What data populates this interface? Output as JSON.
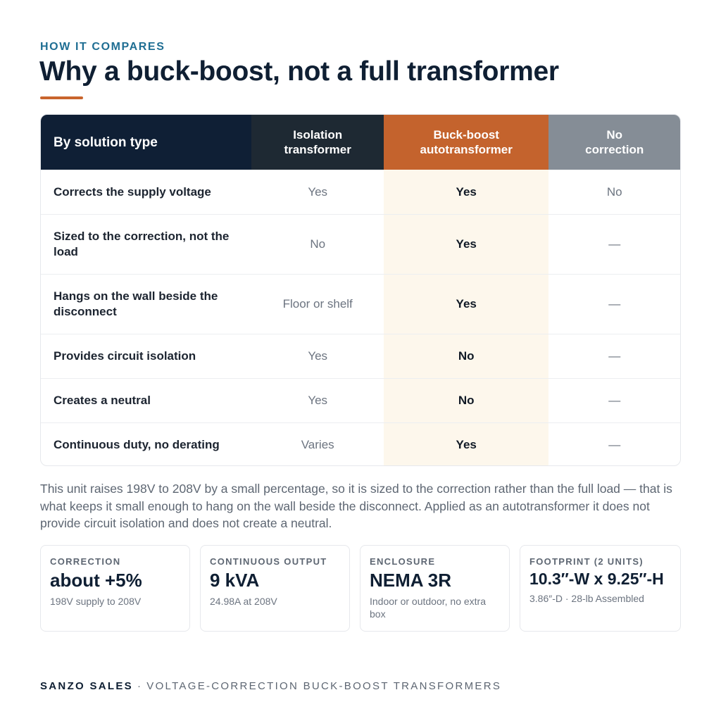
{
  "header": {
    "eyebrow": "HOW IT COMPARES",
    "title": "Why a buck-boost, not a full transformer",
    "accent_color": "#c9652d"
  },
  "table": {
    "columns": [
      {
        "label": "By solution type",
        "color": "#0f1f35"
      },
      {
        "label": "Isolation\ntransformer",
        "color": "#1e2933"
      },
      {
        "label": "Buck-boost\nautotransformer",
        "color": "#c4632d"
      },
      {
        "label": "No\ncorrection",
        "color": "#858d96"
      }
    ],
    "rows": [
      {
        "feature": "Corrects the supply voltage",
        "isolation": "Yes",
        "buck_boost": "Yes",
        "none": "No"
      },
      {
        "feature": "Sized to the correction, not the load",
        "isolation": "No",
        "buck_boost": "Yes",
        "none": "—"
      },
      {
        "feature": "Hangs on the wall beside the disconnect",
        "isolation": "Floor or shelf",
        "buck_boost": "Yes",
        "none": "—"
      },
      {
        "feature": "Provides circuit isolation",
        "isolation": "Yes",
        "buck_boost": "No",
        "none": "—"
      },
      {
        "feature": "Creates a neutral",
        "isolation": "Yes",
        "buck_boost": "No",
        "none": "—"
      },
      {
        "feature": "Continuous duty, no derating",
        "isolation": "Varies",
        "buck_boost": "Yes",
        "none": "—"
      }
    ]
  },
  "note": "This unit raises 198V to 208V by a small percentage, so it is sized to the correction rather than the full load — that is what keeps it small enough to hang on the wall beside the disconnect. Applied as an autotransformer it does not provide circuit isolation and does not create a neutral.",
  "cards": [
    {
      "label": "CORRECTION",
      "value": "about +5%",
      "sub": "198V supply to 208V"
    },
    {
      "label": "CONTINUOUS OUTPUT",
      "value": "9 kVA",
      "sub": "24.98A at 208V"
    },
    {
      "label": "ENCLOSURE",
      "value": "NEMA 3R",
      "sub": "Indoor or outdoor, no extra box"
    },
    {
      "label": "FOOTPRINT (2 UNITS)",
      "value": "10.3″-W x 9.25″-H",
      "sub": "3.86″-D · 28-lb Assembled"
    }
  ],
  "footer": {
    "brand": "SANZO SALES",
    "separator": "·",
    "tagline": "VOLTAGE-CORRECTION BUCK-BOOST TRANSFORMERS"
  }
}
